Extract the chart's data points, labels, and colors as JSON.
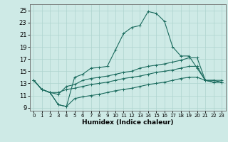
{
  "title": "",
  "xlabel": "Humidex (Indice chaleur)",
  "xlim": [
    -0.5,
    23.5
  ],
  "ylim": [
    8.5,
    26.0
  ],
  "xticks": [
    0,
    1,
    2,
    3,
    4,
    5,
    6,
    7,
    8,
    9,
    10,
    11,
    12,
    13,
    14,
    15,
    16,
    17,
    18,
    19,
    20,
    21,
    22,
    23
  ],
  "yticks": [
    9,
    11,
    13,
    15,
    17,
    19,
    21,
    23,
    25
  ],
  "background_color": "#ceeae6",
  "line_color": "#1b6b5e",
  "grid_color": "#aed4ce",
  "curves": [
    [
      13.5,
      12.0,
      11.5,
      9.5,
      9.2,
      14.0,
      14.5,
      15.5,
      15.6,
      15.8,
      18.5,
      21.2,
      22.2,
      22.5,
      24.8,
      24.5,
      23.2,
      19.0,
      17.5,
      17.5,
      15.5,
      13.5,
      13.5,
      13.2
    ],
    [
      13.5,
      12.0,
      11.5,
      11.2,
      12.5,
      12.8,
      13.5,
      13.8,
      14.0,
      14.2,
      14.5,
      14.8,
      15.0,
      15.5,
      15.8,
      16.0,
      16.2,
      16.5,
      16.8,
      17.2,
      17.2,
      13.5,
      13.5,
      13.5
    ],
    [
      13.5,
      12.0,
      11.5,
      11.5,
      12.0,
      12.2,
      12.5,
      12.8,
      13.0,
      13.2,
      13.5,
      13.8,
      14.0,
      14.2,
      14.5,
      14.8,
      15.0,
      15.2,
      15.5,
      15.8,
      15.8,
      13.5,
      13.2,
      13.2
    ],
    [
      13.5,
      12.0,
      11.5,
      9.5,
      9.2,
      10.5,
      10.8,
      11.0,
      11.2,
      11.5,
      11.8,
      12.0,
      12.2,
      12.5,
      12.8,
      13.0,
      13.2,
      13.5,
      13.8,
      14.0,
      14.0,
      13.5,
      13.2,
      13.2
    ]
  ]
}
